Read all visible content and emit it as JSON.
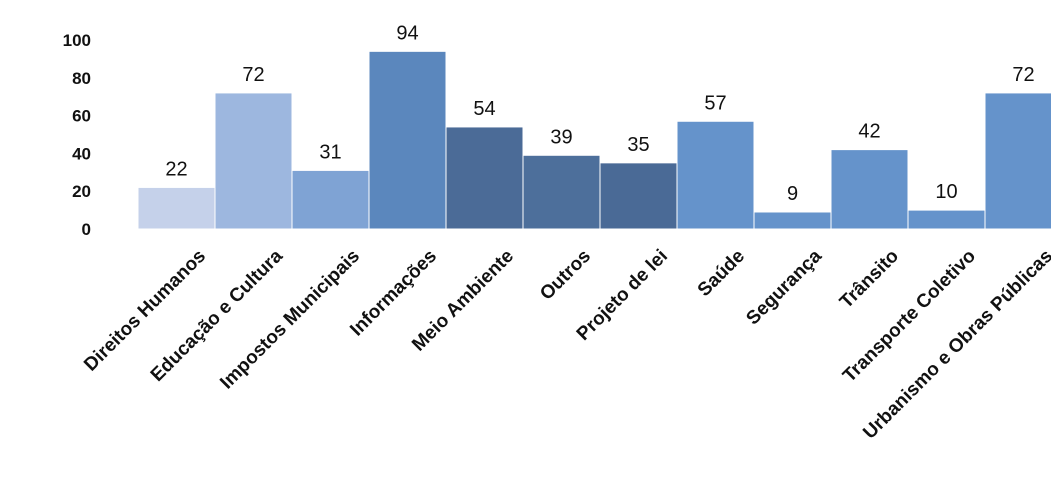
{
  "chart_data": {
    "type": "bar",
    "title": "",
    "xlabel": "",
    "ylabel": "",
    "ylim": [
      0,
      100
    ],
    "yticks": [
      0,
      20,
      40,
      60,
      80,
      100
    ],
    "grid": false,
    "legend": "none",
    "categories": [
      "Direitos Humanos",
      "Educação e Cultura",
      "Impostos Municipais",
      "Informações",
      "Meio Ambiente",
      "Outros",
      "Projeto de lei",
      "Saúde",
      "Segurança",
      "Trânsito",
      "Transporte Coletivo",
      "Urbanismo e Obras Públicas"
    ],
    "values": [
      22,
      72,
      31,
      94,
      54,
      39,
      35,
      57,
      9,
      42,
      10,
      72
    ],
    "colors": [
      "#c5d1ea",
      "#9db7df",
      "#7fa3d4",
      "#5b87bd",
      "#4b6b97",
      "#4d6f9b",
      "#4a6a96",
      "#6593cb",
      "#6593cb",
      "#6593cb",
      "#6593cb",
      "#6593cb"
    ]
  }
}
